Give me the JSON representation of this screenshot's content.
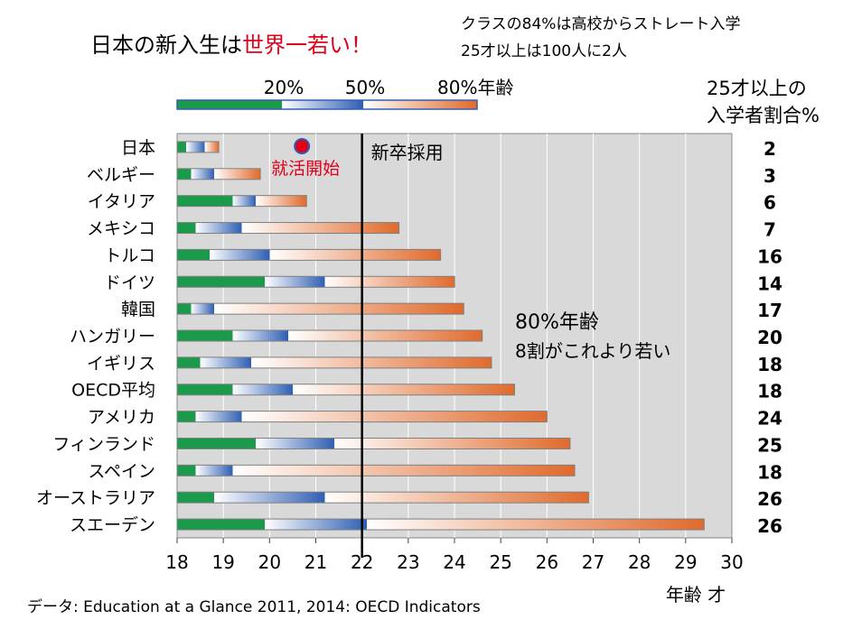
{
  "title_black": "日本の新入生は",
  "title_red": "世界一若い！",
  "note_line1": "クラスの84%は高校からストレート入学",
  "note_line2": "25才以上は100人に2人",
  "ratio_header_line1": "25才以上の",
  "ratio_header_line2": "入学者割合%",
  "source": "データ: Education at a Glance 2011,  2014: OECD Indicators",
  "chart_data": {
    "type": "bar",
    "subtype": "horizontal range bars (age percentiles at entry)",
    "legend": {
      "p20": "20%",
      "p50": "50%",
      "p80": "80%年齢",
      "placement": "top-left"
    },
    "xlabel": "年齢 才",
    "xlim": [
      18,
      30
    ],
    "xticks": [
      18,
      19,
      20,
      21,
      22,
      23,
      24,
      25,
      26,
      27,
      28,
      29,
      30
    ],
    "grid": true,
    "colors": {
      "p20": "#1b9a4c",
      "p50": "#2f5fb3",
      "p80": "#e06a2c",
      "plot_bg": "#d9d9d9"
    },
    "annotations": {
      "shukatsu": "就活開始",
      "shukatsu_age": 20.7,
      "shinsotsu": "新卒採用",
      "shinsotsu_age": 22,
      "p80_title": "80%年齢",
      "p80_desc": "8割がこれより若い"
    },
    "countries": [
      {
        "name": "日本",
        "p20": 18.2,
        "p50": 18.6,
        "p80": 18.9,
        "ratio_25plus": 2
      },
      {
        "name": "ベルギー",
        "p20": 18.3,
        "p50": 18.8,
        "p80": 19.8,
        "ratio_25plus": 3
      },
      {
        "name": "イタリア",
        "p20": 19.2,
        "p50": 19.7,
        "p80": 20.8,
        "ratio_25plus": 6
      },
      {
        "name": "メキシコ",
        "p20": 18.4,
        "p50": 19.4,
        "p80": 22.8,
        "ratio_25plus": 7
      },
      {
        "name": "トルコ",
        "p20": 18.7,
        "p50": 20.0,
        "p80": 23.7,
        "ratio_25plus": 16
      },
      {
        "name": "ドイツ",
        "p20": 19.9,
        "p50": 21.2,
        "p80": 24.0,
        "ratio_25plus": 14
      },
      {
        "name": "韓国",
        "p20": 18.3,
        "p50": 18.8,
        "p80": 24.2,
        "ratio_25plus": 17
      },
      {
        "name": "ハンガリー",
        "p20": 19.2,
        "p50": 20.4,
        "p80": 24.6,
        "ratio_25plus": 20
      },
      {
        "name": "イギリス",
        "p20": 18.5,
        "p50": 19.6,
        "p80": 24.8,
        "ratio_25plus": 18
      },
      {
        "name": "OECD平均",
        "p20": 19.2,
        "p50": 20.5,
        "p80": 25.3,
        "ratio_25plus": 18
      },
      {
        "name": "アメリカ",
        "p20": 18.4,
        "p50": 19.4,
        "p80": 26.0,
        "ratio_25plus": 24
      },
      {
        "name": "フィンランド",
        "p20": 19.7,
        "p50": 21.4,
        "p80": 26.5,
        "ratio_25plus": 25
      },
      {
        "name": "スペイン",
        "p20": 18.4,
        "p50": 19.2,
        "p80": 26.6,
        "ratio_25plus": 18
      },
      {
        "name": "オーストラリア",
        "p20": 18.8,
        "p50": 21.2,
        "p80": 26.9,
        "ratio_25plus": 26
      },
      {
        "name": "スエーデン",
        "p20": 19.9,
        "p50": 22.1,
        "p80": 29.4,
        "ratio_25plus": 26
      }
    ]
  }
}
